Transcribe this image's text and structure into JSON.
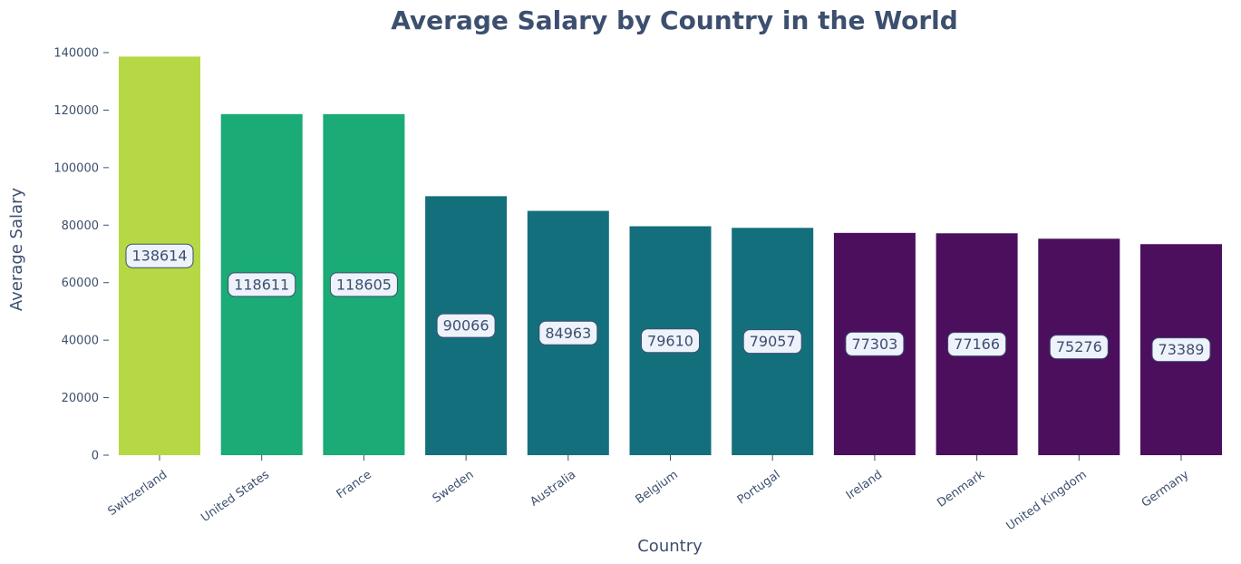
{
  "chart_data": {
    "type": "bar",
    "title": "Average Salary by Country in the World",
    "xlabel": "Country",
    "ylabel": "Average Salary",
    "categories": [
      "Switzerland",
      "United States",
      "France",
      "Sweden",
      "Australia",
      "Belgium",
      "Portugal",
      "Ireland",
      "Denmark",
      "United Kingdom",
      "Germany"
    ],
    "values": [
      138614,
      118611,
      118605,
      90066,
      84963,
      79610,
      79057,
      77303,
      77166,
      75276,
      73389
    ],
    "data_labels": [
      "138614",
      "118611",
      "118605",
      "90066",
      "84963",
      "79610",
      "79057",
      "77303",
      "77166",
      "75276",
      "73389"
    ],
    "bar_colors": [
      "#b5d844",
      "#1aab76",
      "#1aab76",
      "#146f7d",
      "#146f7d",
      "#146f7d",
      "#146f7d",
      "#4b0f5e",
      "#4b0f5e",
      "#4b0f5e",
      "#4b0f5e"
    ],
    "ylim": [
      0,
      140000
    ],
    "yticks": [
      0,
      20000,
      40000,
      60000,
      80000,
      100000,
      120000,
      140000
    ],
    "grid": false,
    "legend": "none"
  },
  "colors": {
    "text": "#3d4f6e",
    "label_box_fill": "#eef2fb",
    "label_box_stroke": "#3d4f6e"
  }
}
